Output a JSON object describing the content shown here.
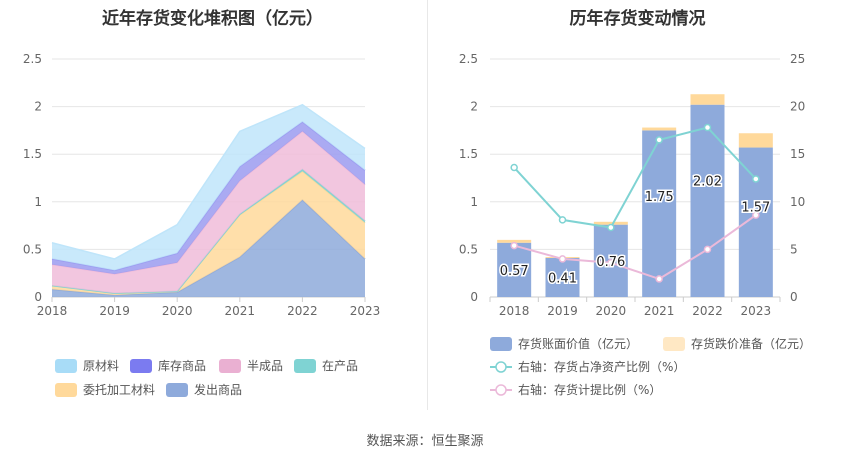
{
  "titles": {
    "left": "近年存货变化堆积图（亿元）",
    "right": "历年存货变动情况"
  },
  "source": "数据来源：恒生聚源",
  "chart_data": [
    {
      "type": "area",
      "stacked": true,
      "title": "近年存货变化堆积图（亿元）",
      "x": [
        "2018",
        "2019",
        "2020",
        "2021",
        "2022",
        "2023"
      ],
      "ylim": [
        0,
        2.5
      ],
      "yticks": [
        "0",
        "0.5",
        "1",
        "1.5",
        "2",
        "2.5"
      ],
      "grid": true,
      "series": [
        {
          "name": "发出商品",
          "color": "#8eaadb",
          "values": [
            0.08,
            0.02,
            0.05,
            0.42,
            1.02,
            0.4
          ]
        },
        {
          "name": "委托加工材料",
          "color": "#ffd99b",
          "values": [
            0.04,
            0.02,
            0.01,
            0.44,
            0.3,
            0.38
          ]
        },
        {
          "name": "在产品",
          "color": "#7fd3d3",
          "values": [
            0.0,
            0.0,
            0.0,
            0.01,
            0.02,
            0.02
          ]
        },
        {
          "name": "半成品",
          "color": "#f0bcd9",
          "values": [
            0.22,
            0.2,
            0.3,
            0.35,
            0.4,
            0.38
          ]
        },
        {
          "name": "库存商品",
          "color": "#9b9bf0",
          "values": [
            0.06,
            0.04,
            0.1,
            0.15,
            0.1,
            0.15
          ]
        },
        {
          "name": "原材料",
          "color": "#bfe5fa",
          "values": [
            0.17,
            0.12,
            0.3,
            0.37,
            0.18,
            0.23
          ]
        }
      ],
      "legend": {
        "order": [
          "原材料",
          "库存商品",
          "半成品",
          "在产品",
          "委托加工材料",
          "发出商品"
        ],
        "colors": [
          "#a8dcf7",
          "#7b7bf0",
          "#eab0d2",
          "#7fd3d3",
          "#ffd99b",
          "#8eaadb"
        ]
      }
    },
    {
      "type": "bar",
      "stacked": true,
      "title": "历年存货变动情况",
      "categories": [
        "2018",
        "2019",
        "2020",
        "2021",
        "2022",
        "2023"
      ],
      "ylim": [
        0,
        2.5
      ],
      "yticks": [
        "0",
        "0.5",
        "1",
        "1.5",
        "2",
        "2.5"
      ],
      "ylim_right": [
        0,
        25
      ],
      "yticks_right": [
        "0",
        "5",
        "10",
        "15",
        "20",
        "25"
      ],
      "series": [
        {
          "name": "存货账面价值（亿元）",
          "color": "#8eaadb",
          "values": [
            0.57,
            0.41,
            0.76,
            1.75,
            2.02,
            1.57
          ],
          "labels": [
            "0.57",
            "0.41",
            "0.76",
            "1.75",
            "2.02",
            "1.57"
          ]
        },
        {
          "name": "存货跌价准备（亿元）",
          "color": "#ffd99b",
          "values": [
            0.03,
            0.01,
            0.03,
            0.03,
            0.11,
            0.15
          ]
        }
      ],
      "lines": [
        {
          "name": "右轴：存货占净资产比例（%）",
          "color": "#7fd3d3",
          "values": [
            13.6,
            8.1,
            7.3,
            16.5,
            17.8,
            12.4
          ]
        },
        {
          "name": "右轴：存货计提比例（%）",
          "color": "#ebb9d9",
          "values": [
            5.4,
            4.0,
            3.6,
            1.9,
            5.0,
            8.6
          ]
        }
      ]
    }
  ]
}
